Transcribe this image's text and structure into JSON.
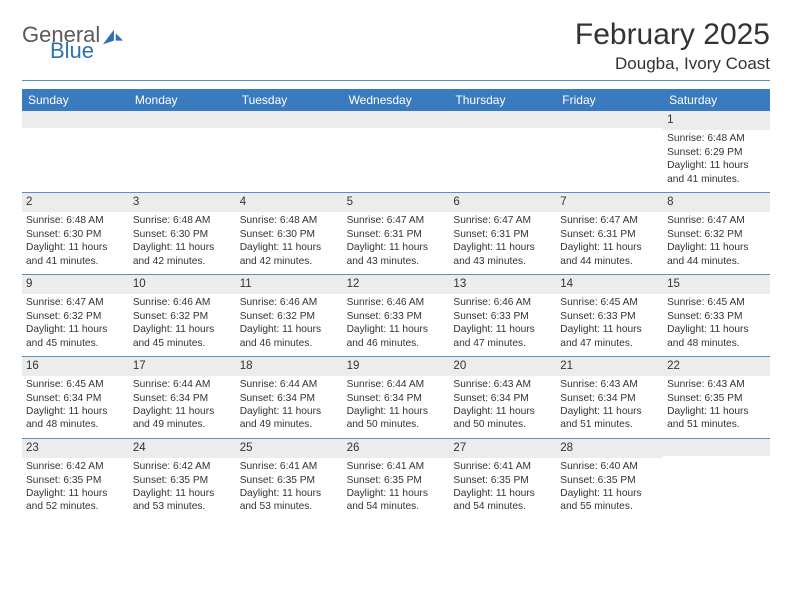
{
  "brand": {
    "text_general": "General",
    "text_blue": "Blue",
    "icon_fill": "#2f6fb3"
  },
  "title": "February 2025",
  "location": "Dougba, Ivory Coast",
  "colors": {
    "header_bg": "#3a7bbf",
    "header_text": "#ffffff",
    "band_bg": "#ececec",
    "rule": "#5a8fc6",
    "body_text": "#333333",
    "page_bg": "#ffffff"
  },
  "day_headers": [
    "Sunday",
    "Monday",
    "Tuesday",
    "Wednesday",
    "Thursday",
    "Friday",
    "Saturday"
  ],
  "weeks": [
    [
      {
        "n": "",
        "lines": []
      },
      {
        "n": "",
        "lines": []
      },
      {
        "n": "",
        "lines": []
      },
      {
        "n": "",
        "lines": []
      },
      {
        "n": "",
        "lines": []
      },
      {
        "n": "",
        "lines": []
      },
      {
        "n": "1",
        "lines": [
          "Sunrise: 6:48 AM",
          "Sunset: 6:29 PM",
          "Daylight: 11 hours and 41 minutes."
        ]
      }
    ],
    [
      {
        "n": "2",
        "lines": [
          "Sunrise: 6:48 AM",
          "Sunset: 6:30 PM",
          "Daylight: 11 hours and 41 minutes."
        ]
      },
      {
        "n": "3",
        "lines": [
          "Sunrise: 6:48 AM",
          "Sunset: 6:30 PM",
          "Daylight: 11 hours and 42 minutes."
        ]
      },
      {
        "n": "4",
        "lines": [
          "Sunrise: 6:48 AM",
          "Sunset: 6:30 PM",
          "Daylight: 11 hours and 42 minutes."
        ]
      },
      {
        "n": "5",
        "lines": [
          "Sunrise: 6:47 AM",
          "Sunset: 6:31 PM",
          "Daylight: 11 hours and 43 minutes."
        ]
      },
      {
        "n": "6",
        "lines": [
          "Sunrise: 6:47 AM",
          "Sunset: 6:31 PM",
          "Daylight: 11 hours and 43 minutes."
        ]
      },
      {
        "n": "7",
        "lines": [
          "Sunrise: 6:47 AM",
          "Sunset: 6:31 PM",
          "Daylight: 11 hours and 44 minutes."
        ]
      },
      {
        "n": "8",
        "lines": [
          "Sunrise: 6:47 AM",
          "Sunset: 6:32 PM",
          "Daylight: 11 hours and 44 minutes."
        ]
      }
    ],
    [
      {
        "n": "9",
        "lines": [
          "Sunrise: 6:47 AM",
          "Sunset: 6:32 PM",
          "Daylight: 11 hours and 45 minutes."
        ]
      },
      {
        "n": "10",
        "lines": [
          "Sunrise: 6:46 AM",
          "Sunset: 6:32 PM",
          "Daylight: 11 hours and 45 minutes."
        ]
      },
      {
        "n": "11",
        "lines": [
          "Sunrise: 6:46 AM",
          "Sunset: 6:32 PM",
          "Daylight: 11 hours and 46 minutes."
        ]
      },
      {
        "n": "12",
        "lines": [
          "Sunrise: 6:46 AM",
          "Sunset: 6:33 PM",
          "Daylight: 11 hours and 46 minutes."
        ]
      },
      {
        "n": "13",
        "lines": [
          "Sunrise: 6:46 AM",
          "Sunset: 6:33 PM",
          "Daylight: 11 hours and 47 minutes."
        ]
      },
      {
        "n": "14",
        "lines": [
          "Sunrise: 6:45 AM",
          "Sunset: 6:33 PM",
          "Daylight: 11 hours and 47 minutes."
        ]
      },
      {
        "n": "15",
        "lines": [
          "Sunrise: 6:45 AM",
          "Sunset: 6:33 PM",
          "Daylight: 11 hours and 48 minutes."
        ]
      }
    ],
    [
      {
        "n": "16",
        "lines": [
          "Sunrise: 6:45 AM",
          "Sunset: 6:34 PM",
          "Daylight: 11 hours and 48 minutes."
        ]
      },
      {
        "n": "17",
        "lines": [
          "Sunrise: 6:44 AM",
          "Sunset: 6:34 PM",
          "Daylight: 11 hours and 49 minutes."
        ]
      },
      {
        "n": "18",
        "lines": [
          "Sunrise: 6:44 AM",
          "Sunset: 6:34 PM",
          "Daylight: 11 hours and 49 minutes."
        ]
      },
      {
        "n": "19",
        "lines": [
          "Sunrise: 6:44 AM",
          "Sunset: 6:34 PM",
          "Daylight: 11 hours and 50 minutes."
        ]
      },
      {
        "n": "20",
        "lines": [
          "Sunrise: 6:43 AM",
          "Sunset: 6:34 PM",
          "Daylight: 11 hours and 50 minutes."
        ]
      },
      {
        "n": "21",
        "lines": [
          "Sunrise: 6:43 AM",
          "Sunset: 6:34 PM",
          "Daylight: 11 hours and 51 minutes."
        ]
      },
      {
        "n": "22",
        "lines": [
          "Sunrise: 6:43 AM",
          "Sunset: 6:35 PM",
          "Daylight: 11 hours and 51 minutes."
        ]
      }
    ],
    [
      {
        "n": "23",
        "lines": [
          "Sunrise: 6:42 AM",
          "Sunset: 6:35 PM",
          "Daylight: 11 hours and 52 minutes."
        ]
      },
      {
        "n": "24",
        "lines": [
          "Sunrise: 6:42 AM",
          "Sunset: 6:35 PM",
          "Daylight: 11 hours and 53 minutes."
        ]
      },
      {
        "n": "25",
        "lines": [
          "Sunrise: 6:41 AM",
          "Sunset: 6:35 PM",
          "Daylight: 11 hours and 53 minutes."
        ]
      },
      {
        "n": "26",
        "lines": [
          "Sunrise: 6:41 AM",
          "Sunset: 6:35 PM",
          "Daylight: 11 hours and 54 minutes."
        ]
      },
      {
        "n": "27",
        "lines": [
          "Sunrise: 6:41 AM",
          "Sunset: 6:35 PM",
          "Daylight: 11 hours and 54 minutes."
        ]
      },
      {
        "n": "28",
        "lines": [
          "Sunrise: 6:40 AM",
          "Sunset: 6:35 PM",
          "Daylight: 11 hours and 55 minutes."
        ]
      },
      {
        "n": "",
        "lines": []
      }
    ]
  ]
}
